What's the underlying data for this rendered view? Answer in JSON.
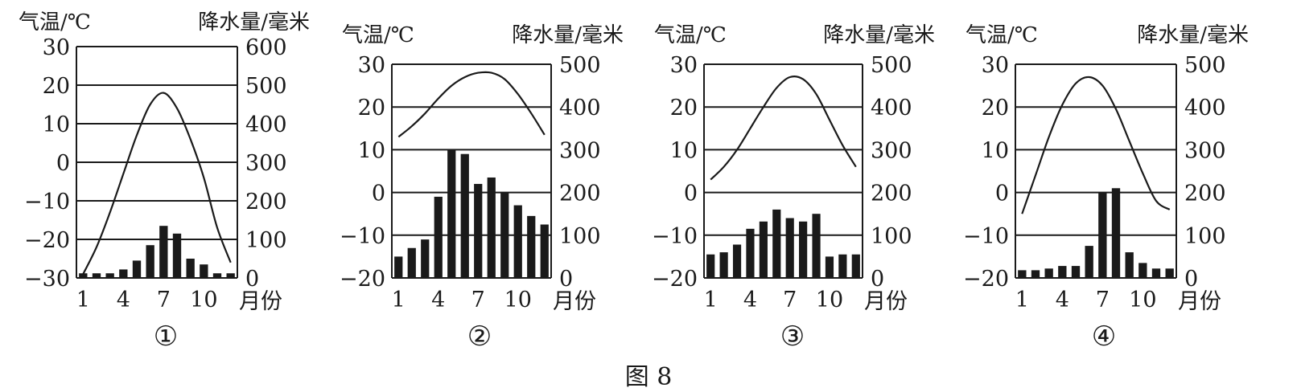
{
  "figure_caption": "图 8",
  "colors": {
    "ink": "#1a1a1a",
    "bar": "#1a1a1a",
    "background": "#ffffff"
  },
  "chart_data": [
    {
      "type": "bar",
      "marker": "①",
      "ylabel_left": "气温/℃",
      "ylabel_right": "降水量/毫米",
      "xlabel": "月份",
      "x_ticks": [
        "1",
        "4",
        "7",
        "10"
      ],
      "months": [
        1,
        2,
        3,
        4,
        5,
        6,
        7,
        8,
        9,
        10,
        11,
        12
      ],
      "temp_ylim": [
        -30,
        30
      ],
      "temp_ticks": [
        "30",
        "20",
        "10",
        "0",
        "-10",
        "-20",
        "-30"
      ],
      "precip_ylim": [
        0,
        600
      ],
      "precip_ticks": [
        "600",
        "500",
        "400",
        "300",
        "200",
        "100",
        "0"
      ],
      "grid": true,
      "series": [
        {
          "name": "气温",
          "kind": "line",
          "values": [
            -29,
            -22,
            -13,
            -3,
            7,
            15,
            18,
            14,
            6,
            -4,
            -17,
            -26
          ]
        },
        {
          "name": "降水量",
          "kind": "bar",
          "values": [
            12,
            12,
            12,
            22,
            45,
            85,
            135,
            115,
            50,
            35,
            12,
            12
          ]
        }
      ]
    },
    {
      "type": "bar",
      "marker": "②",
      "ylabel_left": "气温/℃",
      "ylabel_right": "降水量/毫米",
      "xlabel": "月份",
      "x_ticks": [
        "1",
        "4",
        "7",
        "10"
      ],
      "months": [
        1,
        2,
        3,
        4,
        5,
        6,
        7,
        8,
        9,
        10,
        11,
        12
      ],
      "temp_ylim": [
        -20,
        30
      ],
      "temp_ticks": [
        "30",
        "20",
        "10",
        "0",
        "-10",
        "-20"
      ],
      "precip_ylim": [
        0,
        500
      ],
      "precip_ticks": [
        "500",
        "400",
        "300",
        "200",
        "100",
        "0"
      ],
      "grid": true,
      "series": [
        {
          "name": "气温",
          "kind": "line",
          "values": [
            13,
            15.5,
            18.5,
            22,
            25,
            27,
            28,
            28,
            26.5,
            23,
            18.5,
            13.5
          ]
        },
        {
          "name": "降水量",
          "kind": "bar",
          "values": [
            50,
            70,
            90,
            190,
            300,
            290,
            220,
            235,
            200,
            170,
            145,
            125
          ]
        }
      ]
    },
    {
      "type": "bar",
      "marker": "③",
      "ylabel_left": "气温/℃",
      "ylabel_right": "降水量/毫米",
      "xlabel": "月份",
      "x_ticks": [
        "1",
        "4",
        "7",
        "10"
      ],
      "months": [
        1,
        2,
        3,
        4,
        5,
        6,
        7,
        8,
        9,
        10,
        11,
        12
      ],
      "temp_ylim": [
        -20,
        30
      ],
      "temp_ticks": [
        "30",
        "20",
        "10",
        "0",
        "-10",
        "-20"
      ],
      "precip_ylim": [
        0,
        500
      ],
      "precip_ticks": [
        "500",
        "400",
        "300",
        "200",
        "100",
        "0"
      ],
      "grid": true,
      "series": [
        {
          "name": "气温",
          "kind": "line",
          "values": [
            3,
            6,
            10,
            15,
            20,
            24.5,
            27,
            26.5,
            23,
            17,
            11,
            6
          ]
        },
        {
          "name": "降水量",
          "kind": "bar",
          "values": [
            55,
            60,
            78,
            115,
            132,
            160,
            140,
            132,
            150,
            50,
            55,
            55
          ]
        }
      ]
    },
    {
      "type": "bar",
      "marker": "④",
      "ylabel_left": "气温/℃",
      "ylabel_right": "降水量/毫米",
      "xlabel": "月份",
      "x_ticks": [
        "1",
        "4",
        "7",
        "10"
      ],
      "months": [
        1,
        2,
        3,
        4,
        5,
        6,
        7,
        8,
        9,
        10,
        11,
        12
      ],
      "temp_ylim": [
        -20,
        30
      ],
      "temp_ticks": [
        "30",
        "20",
        "10",
        "0",
        "-10",
        "-20"
      ],
      "precip_ylim": [
        0,
        500
      ],
      "precip_ticks": [
        "500",
        "400",
        "300",
        "200",
        "100",
        "0"
      ],
      "grid": true,
      "series": [
        {
          "name": "气温",
          "kind": "line",
          "values": [
            -5,
            4,
            13,
            20.5,
            25.5,
            27,
            25,
            19.5,
            12,
            4.5,
            -2,
            -4
          ]
        },
        {
          "name": "降水量",
          "kind": "bar",
          "values": [
            18,
            18,
            22,
            28,
            28,
            75,
            200,
            210,
            60,
            35,
            22,
            22
          ]
        }
      ]
    }
  ]
}
